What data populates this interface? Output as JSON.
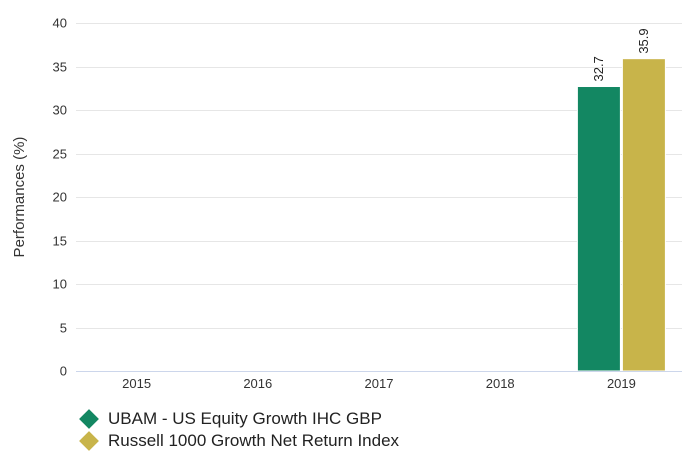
{
  "chart_data": {
    "type": "bar",
    "categories": [
      "2015",
      "2016",
      "2017",
      "2018",
      "2019"
    ],
    "series": [
      {
        "name": "UBAM - US Equity Growth IHC GBP",
        "color": "#138762",
        "values": [
          null,
          null,
          null,
          null,
          32.7
        ],
        "labels": [
          "",
          "",
          "",
          "",
          "32.7"
        ]
      },
      {
        "name": "Russell 1000 Growth Net Return Index",
        "color": "#c8b44a",
        "values": [
          null,
          null,
          null,
          null,
          35.9
        ],
        "labels": [
          "",
          "",
          "",
          "",
          "35.9"
        ]
      }
    ],
    "ylabel": "Performances (%)",
    "ylim": [
      0,
      40
    ],
    "yticks": [
      "0",
      "5",
      "10",
      "15",
      "20",
      "25",
      "30",
      "35",
      "40"
    ],
    "grid": true,
    "legend_position": "bottom-left"
  }
}
